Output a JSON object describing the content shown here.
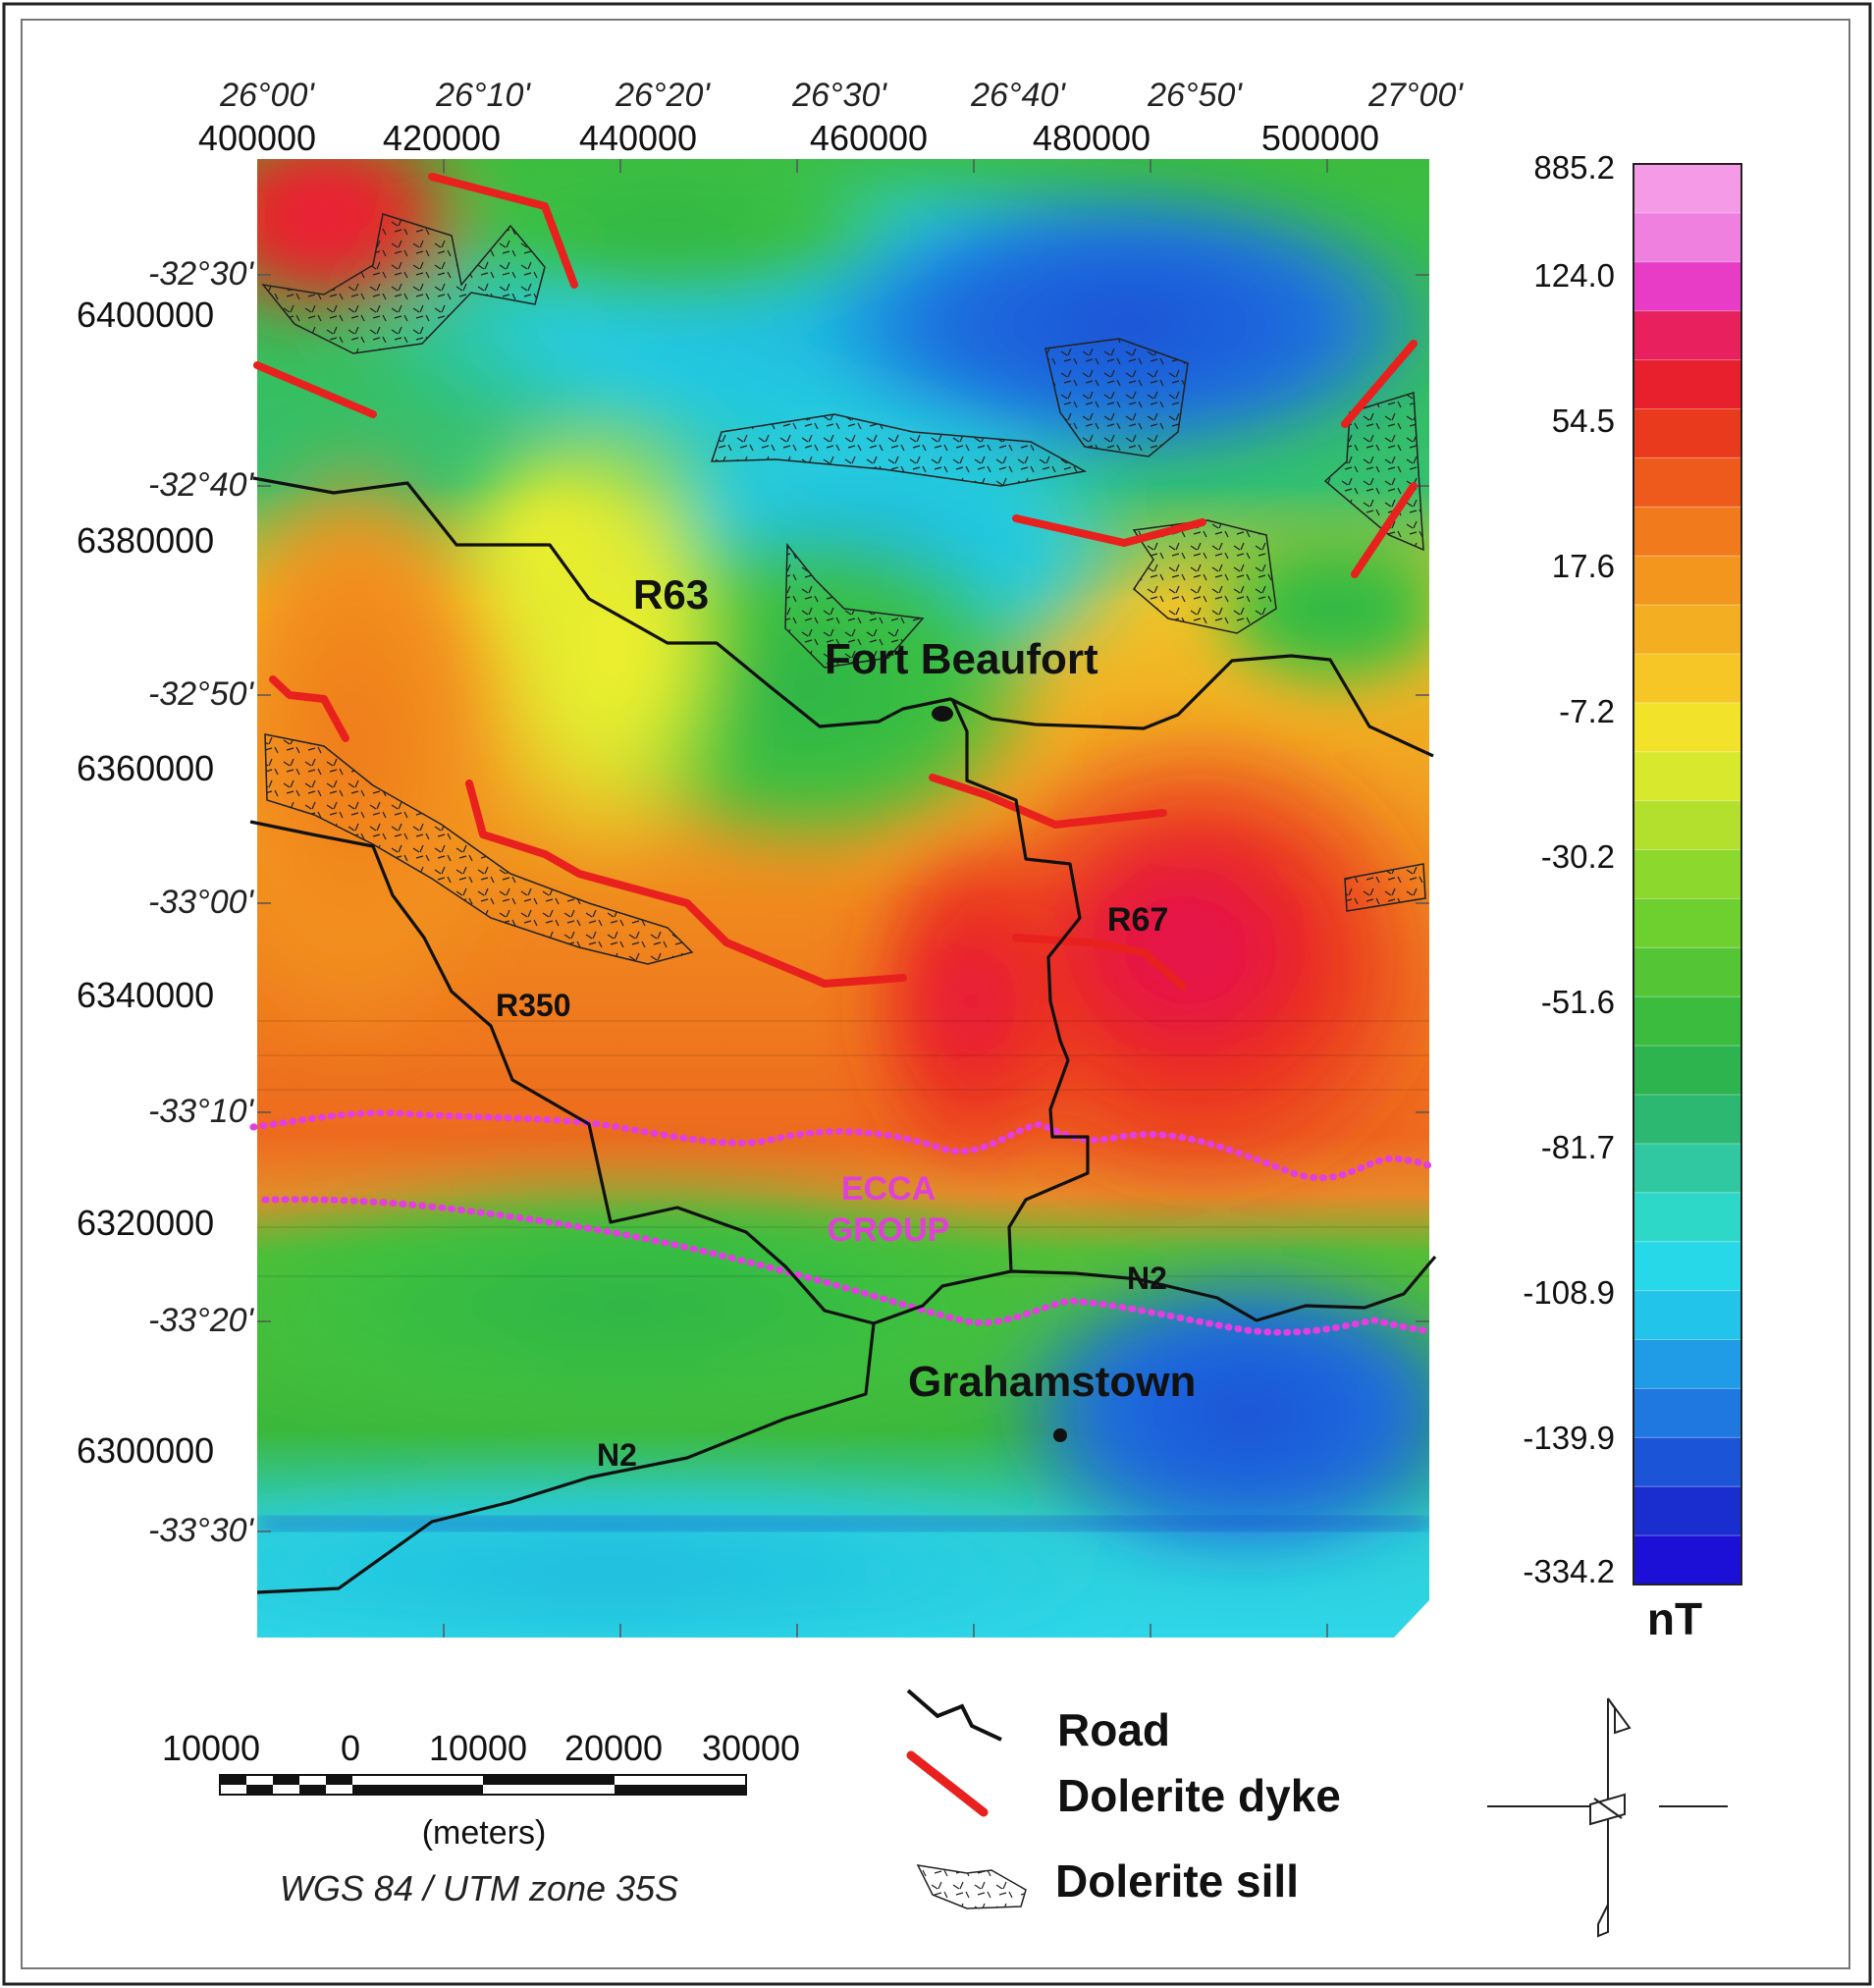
{
  "map": {
    "top_axis": {
      "lon_labels": [
        "26°00'",
        "26°10'",
        "26°20'",
        "26°30'",
        "26°40'",
        "26°50'",
        "27°00'"
      ],
      "utm_labels": [
        "400000",
        "420000",
        "440000",
        "460000",
        "480000",
        "500000"
      ]
    },
    "left_axis": {
      "lat_labels": [
        "-32°30'",
        "-32°40'",
        "-32°50'",
        "-33°00'",
        "-33°10'",
        "-33°20'",
        "-33°30'"
      ],
      "utm_labels": [
        "6400000",
        "6380000",
        "6360000",
        "6340000",
        "6320000",
        "6300000"
      ]
    },
    "labels": {
      "r63": "R63",
      "fort_beaufort": "Fort Beaufort",
      "r67": "R67",
      "r350": "R350",
      "ecca_line1": "ECCA",
      "ecca_line2": "GROUP",
      "n2_east": "N2",
      "grahamstown": "Grahamstown",
      "n2_west": "N2"
    },
    "colors": {
      "road": "#111111",
      "dyke": "#e8201e",
      "ecca_boundary": "#e23ee0",
      "ecca_label": "#e040d8"
    }
  },
  "colorbar": {
    "ticks": [
      "885.2",
      "124.0",
      "54.5",
      "17.6",
      "-7.2",
      "-30.2",
      "-51.6",
      "-81.7",
      "-108.9",
      "-139.9",
      "-334.2"
    ],
    "unit": "nT",
    "colors": [
      "#f59ae6",
      "#f080e0",
      "#e83cc6",
      "#e8205e",
      "#e81f2c",
      "#ea3a1e",
      "#ee5a1c",
      "#f07a1c",
      "#f2961e",
      "#f4ae22",
      "#f6c626",
      "#f2e22a",
      "#d8e82c",
      "#b2e02c",
      "#8cd82c",
      "#6ed02e",
      "#54c636",
      "#3cbc3e",
      "#2eb44e",
      "#2cb870",
      "#30c8a0",
      "#2ed8c8",
      "#26d8e8",
      "#22c4ea",
      "#209ce6",
      "#1e78e0",
      "#1c54d8",
      "#1a2ed0",
      "#1c10d6"
    ]
  },
  "scale_bar": {
    "labels": [
      "10000",
      "0",
      "10000",
      "20000",
      "30000"
    ],
    "unit": "(meters)",
    "projection": "WGS 84 / UTM zone 35S"
  },
  "legend": {
    "items": [
      {
        "label": "Road",
        "symbol": "road-line-icon"
      },
      {
        "label": "Dolerite dyke",
        "symbol": "dyke-line-icon"
      },
      {
        "label": "Dolerite sill",
        "symbol": "sill-outline-icon"
      }
    ]
  },
  "north_arrow": {
    "symbol": "north-arrow-icon"
  }
}
